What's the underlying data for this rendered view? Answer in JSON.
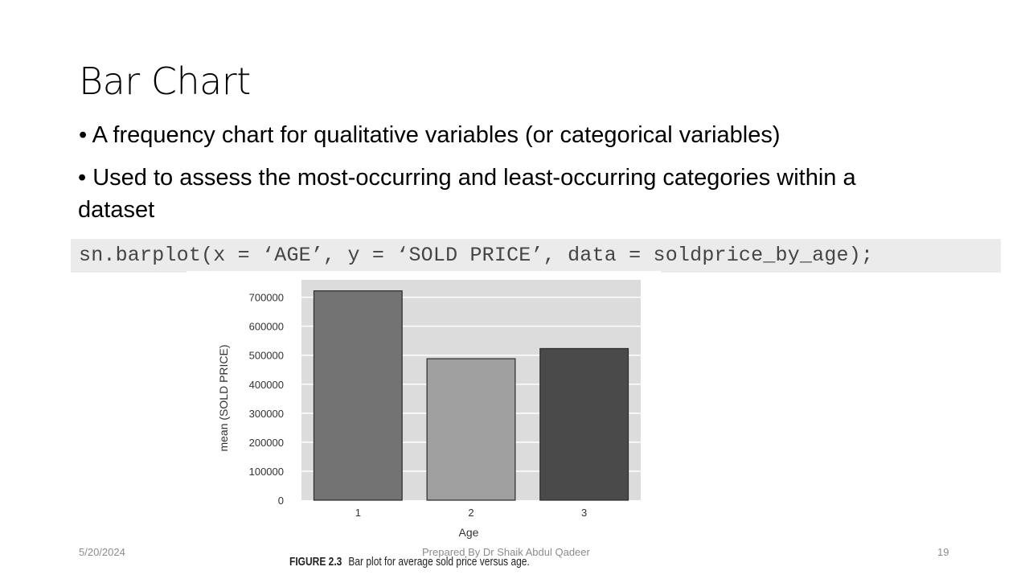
{
  "slide": {
    "title": "Bar Chart",
    "bullets": [
      "• A frequency chart for qualitative variables (or categorical variables)",
      "• Used to assess the most-occurring and least-occurring categories within a dataset"
    ],
    "code": "sn.barplot(x = ‘AGE’, y = ‘SOLD PRICE’, data = soldprice_by_age);"
  },
  "figure": {
    "label": "FIGURE 2.3",
    "text": "Bar plot for average sold price versus age."
  },
  "footer": {
    "date": "5/20/2024",
    "author": "Prepared By Dr Shaik Abdul Qadeer",
    "page": "19"
  },
  "chart_data": {
    "type": "bar",
    "categories": [
      "1",
      "2",
      "3"
    ],
    "values": [
      722000,
      488000,
      523000
    ],
    "bar_colors": [
      "#737373",
      "#9f9f9f",
      "#4a4a4a"
    ],
    "plot_background": "#dcdcdc",
    "grid": true,
    "xlabel": "Age",
    "ylabel": "mean (SOLD PRICE)",
    "yticks": [
      0,
      100000,
      200000,
      300000,
      400000,
      500000,
      600000,
      700000
    ],
    "ylim": [
      0,
      760000
    ]
  }
}
